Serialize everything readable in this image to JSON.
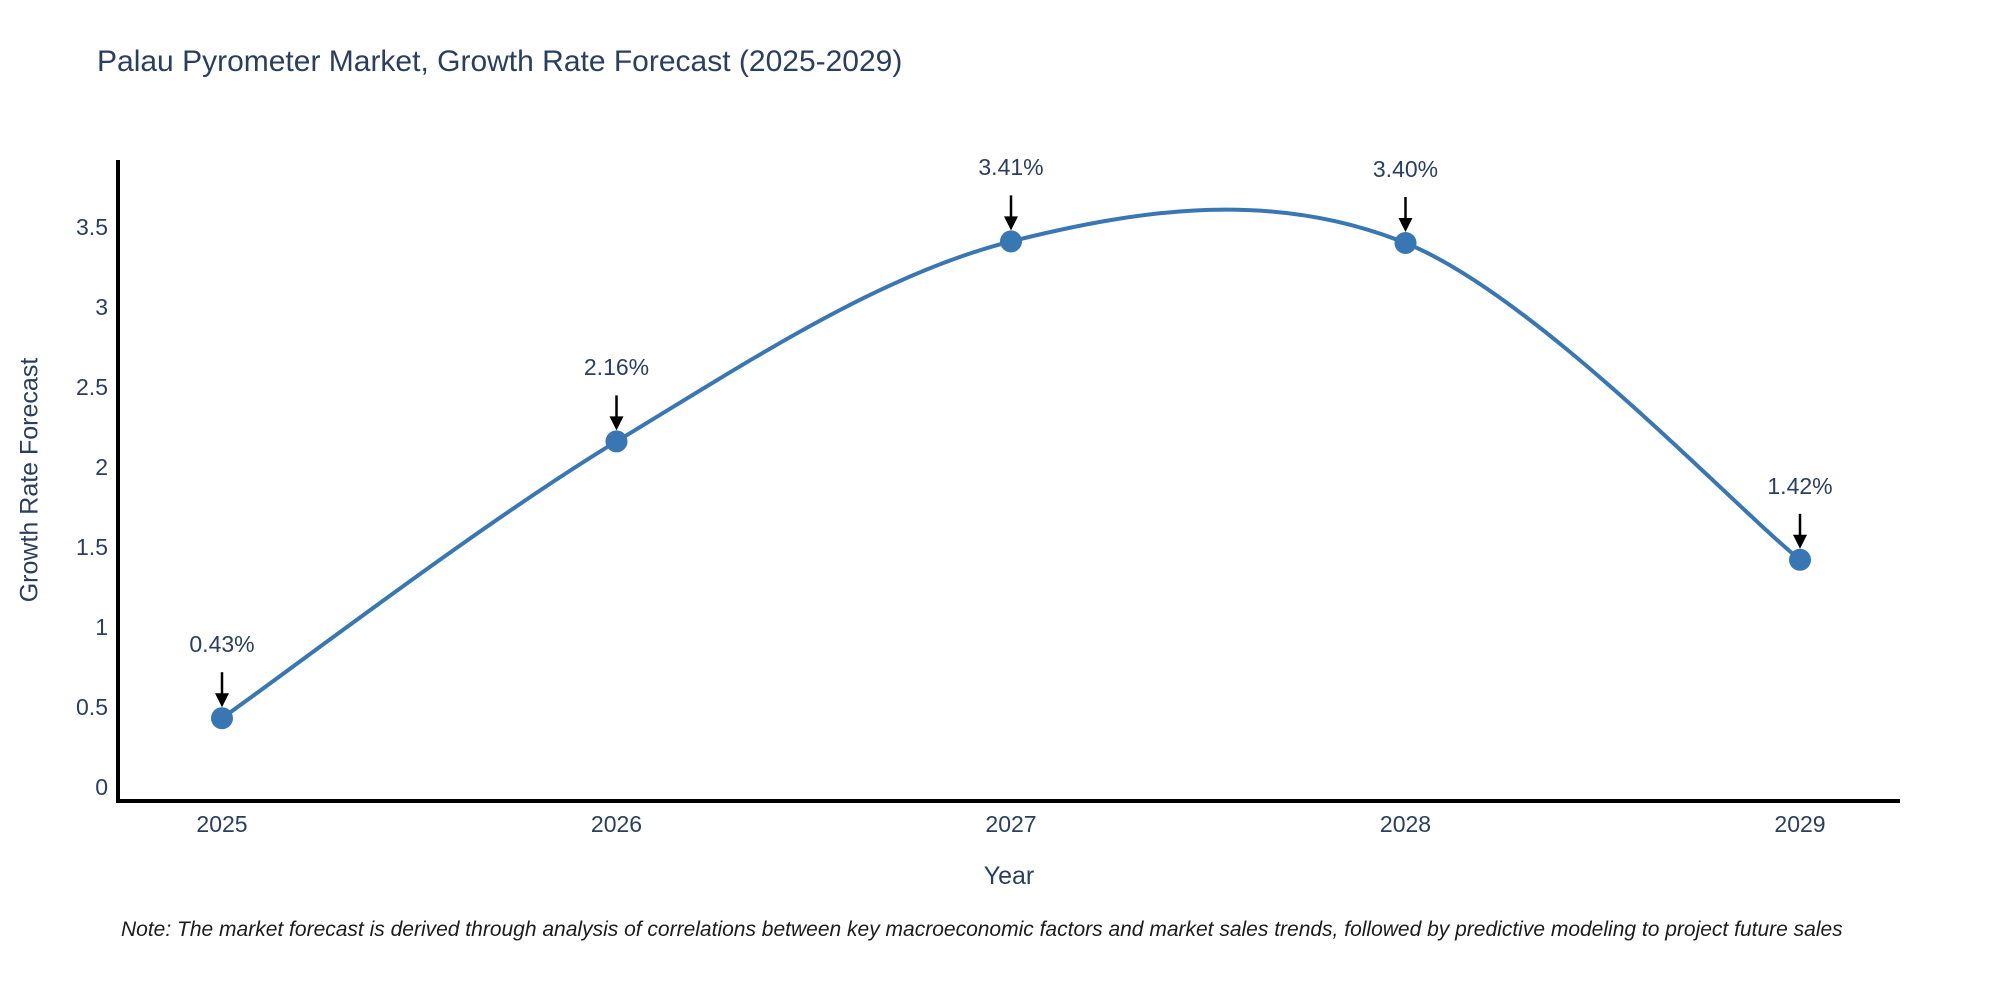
{
  "title": "Palau Pyrometer Market, Growth Rate Forecast (2025-2029)",
  "note": "Note: The market forecast is derived through analysis of correlations between key macroeconomic factors and market sales trends, followed by predictive modeling to project future sales",
  "chart_data": {
    "type": "line",
    "line_shape": "spline",
    "title": "Palau Pyrometer Market, Growth Rate Forecast (2025-2029)",
    "categories": [
      "2025",
      "2026",
      "2027",
      "2028",
      "2029"
    ],
    "series": [
      {
        "name": "Growth Rate Forecast",
        "values": [
          0.43,
          2.16,
          3.41,
          3.4,
          1.42
        ]
      }
    ],
    "point_labels": [
      "0.43%",
      "2.16%",
      "3.41%",
      "3.40%",
      "1.42%"
    ],
    "xlabel": "Year",
    "ylabel": "Growth Rate Forecast",
    "yticks": [
      0,
      0.5,
      1,
      1.5,
      2,
      2.5,
      3,
      3.5
    ],
    "ylim": [
      -0.11,
      3.93
    ],
    "grid": false,
    "legend_position": "none",
    "markers": true,
    "annotations_arrows": true,
    "colors": {
      "line": "#3876b4",
      "marker": "#3876b4",
      "axis_line": "#000000",
      "text": "#2a3f5f",
      "arrow": "#000000",
      "background": "#ffffff"
    }
  }
}
